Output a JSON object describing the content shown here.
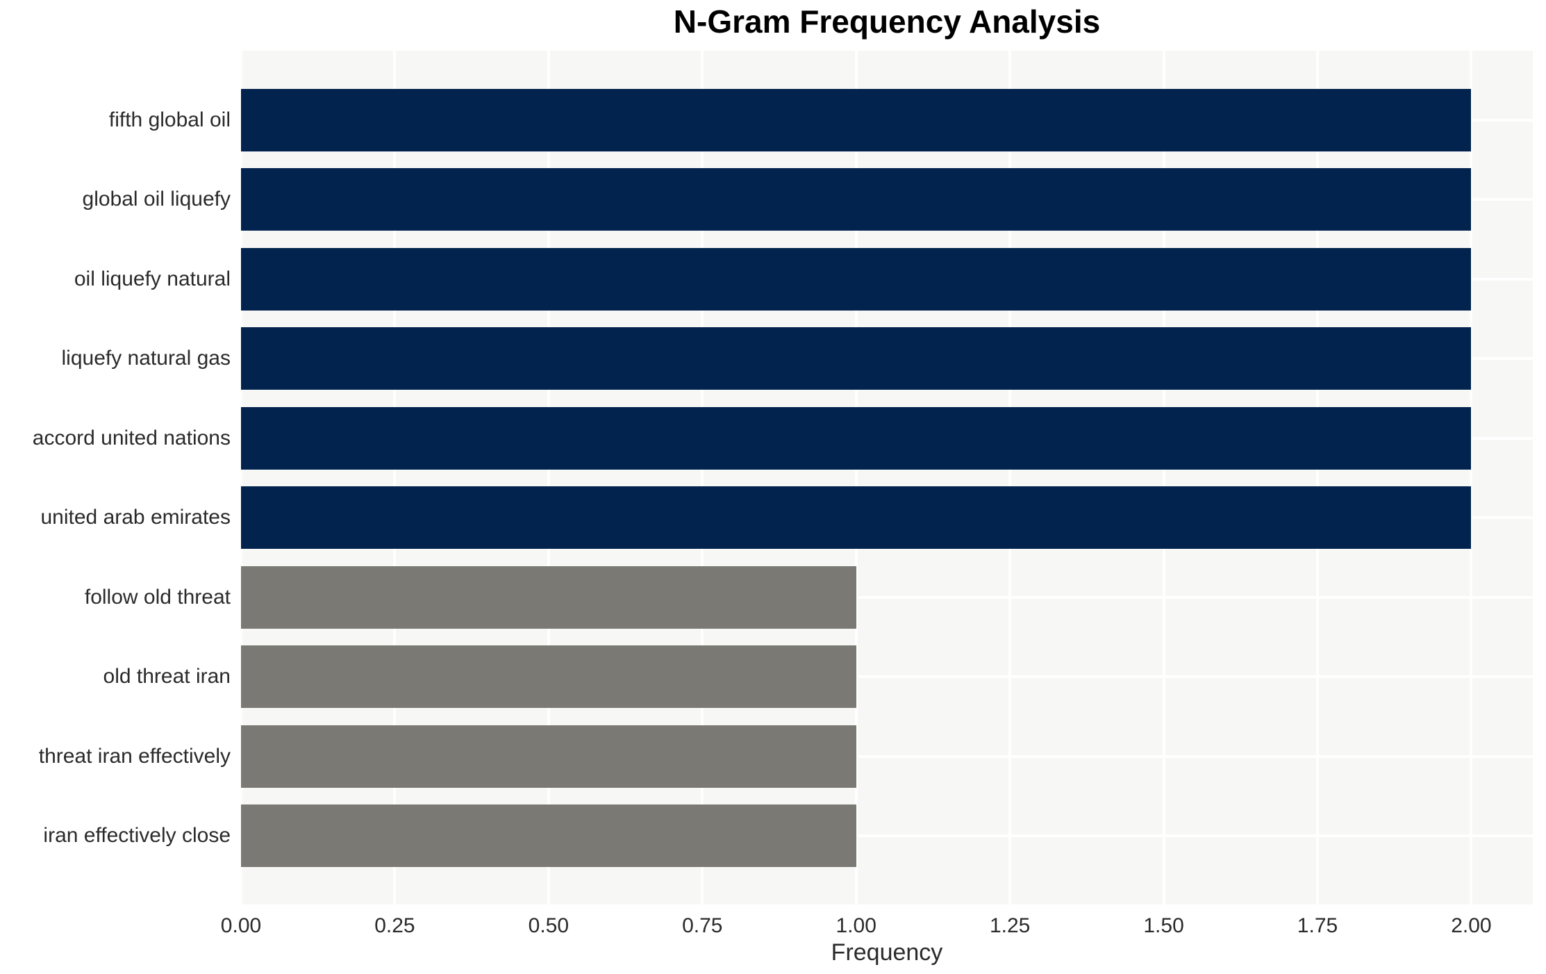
{
  "chart_data": {
    "type": "bar",
    "orientation": "horizontal",
    "title": "N-Gram Frequency Analysis",
    "xlabel": "Frequency",
    "ylabel": "",
    "categories": [
      "fifth global oil",
      "global oil liquefy",
      "oil liquefy natural",
      "liquefy natural gas",
      "accord united nations",
      "united arab emirates",
      "follow old threat",
      "old threat iran",
      "threat iran effectively",
      "iran effectively close"
    ],
    "values": [
      2,
      2,
      2,
      2,
      2,
      2,
      1,
      1,
      1,
      1
    ],
    "bar_colors": [
      "#02234d",
      "#02234d",
      "#02234d",
      "#02234d",
      "#02234d",
      "#02234d",
      "#7a7973",
      "#7a7973",
      "#7a7973",
      "#7a7973"
    ],
    "xlim": [
      0,
      2.1
    ],
    "xticks": {
      "values": [
        0,
        0.25,
        0.5,
        0.75,
        1.0,
        1.25,
        1.5,
        1.75,
        2.0
      ],
      "labels": [
        "0.00",
        "0.25",
        "0.50",
        "0.75",
        "1.00",
        "1.25",
        "1.50",
        "1.75",
        "2.00"
      ]
    },
    "grid": true,
    "legend": false,
    "colors": {
      "high_frequency_bar": "#02234d",
      "low_frequency_bar": "#7a7973",
      "plot_background": "#f7f7f6",
      "gridline": "#ffffff",
      "tick_text": "#2a2a2a",
      "title_text": "#000000",
      "figure_background": "#ffffff"
    }
  }
}
